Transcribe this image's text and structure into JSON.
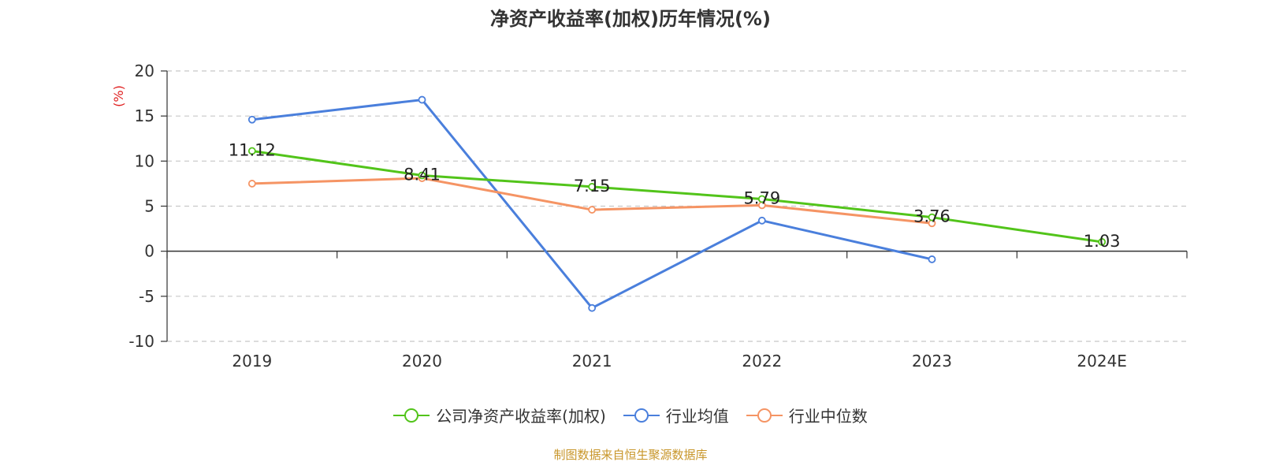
{
  "page": {
    "title": "净资产收益率(加权)历年情况(%)",
    "source": "制图数据来自恒生聚源数据库"
  },
  "chart_data": {
    "type": "line",
    "title": "净资产收益率(加权)历年情况(%)",
    "xlabel": "",
    "ylabel": "(%)",
    "ylim": [
      -10,
      20
    ],
    "yticks": [
      -10,
      -5,
      0,
      5,
      10,
      15,
      20
    ],
    "grid": true,
    "legend_position": "bottom",
    "categories": [
      "2019",
      "2020",
      "2021",
      "2022",
      "2023",
      "2024E"
    ],
    "series": [
      {
        "name": "公司净资产收益率(加权)",
        "color": "#52c41a",
        "values": [
          11.12,
          8.41,
          7.15,
          5.79,
          3.76,
          1.03
        ],
        "labels": [
          "11.12",
          "8.41",
          "7.15",
          "5.79",
          "3.76",
          "1.03"
        ]
      },
      {
        "name": "行业均值",
        "color": "#4a7fdc",
        "values": [
          14.6,
          16.8,
          -6.3,
          3.4,
          -0.9,
          null
        ]
      },
      {
        "name": "行业中位数",
        "color": "#f59464",
        "values": [
          7.5,
          8.1,
          4.6,
          5.1,
          3.1,
          null
        ]
      }
    ]
  }
}
